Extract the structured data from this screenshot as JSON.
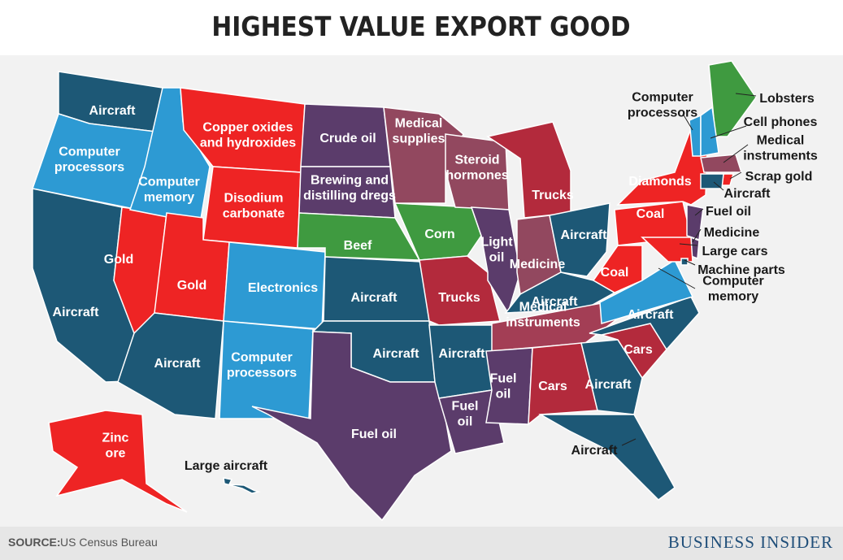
{
  "title": "HIGHEST VALUE EXPORT GOOD",
  "source": {
    "label": "SOURCE:",
    "text": "US Census Bureau"
  },
  "brand": "BUSINESS INSIDER",
  "regions": [
    {
      "label": [
        "Aircraft"
      ],
      "color": "#1d5876"
    },
    {
      "label": [
        "Computer",
        "processors"
      ],
      "color": "#2d9ad3"
    },
    {
      "label": [
        "Aircraft"
      ],
      "color": "#1d5876"
    },
    {
      "label": [
        "Gold"
      ],
      "color": "#ee2424"
    },
    {
      "label": [
        "Computer",
        "memory"
      ],
      "color": "#2d9ad3"
    },
    {
      "label": [
        "Copper oxides",
        "and hydroxides"
      ],
      "color": "#ee2424"
    },
    {
      "label": [
        "Disodium",
        "carbonate"
      ],
      "color": "#ee2424"
    },
    {
      "label": [
        "Gold"
      ],
      "color": "#ee2424"
    },
    {
      "label": [
        "Electronics"
      ],
      "color": "#2d9ad3"
    },
    {
      "label": [
        "Aircraft"
      ],
      "color": "#1d5876"
    },
    {
      "label": [
        "Computer",
        "processors"
      ],
      "color": "#2d9ad3"
    },
    {
      "label": [
        "Crude oil"
      ],
      "color": "#5b3c6b"
    },
    {
      "label": [
        "Brewing and",
        "distilling dregs"
      ],
      "color": "#5b3c6b"
    },
    {
      "label": [
        "Beef"
      ],
      "color": "#3f9a40"
    },
    {
      "label": [
        "Aircraft"
      ],
      "color": "#1d5876"
    },
    {
      "label": [
        "Aircraft"
      ],
      "color": "#1d5876"
    },
    {
      "label": [
        "Fuel oil"
      ],
      "color": "#5b3c6b"
    },
    {
      "label": [
        "Medical",
        "supplies"
      ],
      "color": "#92485f"
    },
    {
      "label": [
        "Corn"
      ],
      "color": "#3f9a40"
    },
    {
      "label": [
        "Trucks"
      ],
      "color": "#b32a3c"
    },
    {
      "label": [
        "Aircraft"
      ],
      "color": "#1d5876"
    },
    {
      "label": [
        "Fuel",
        "oil"
      ],
      "color": "#5b3c6b"
    },
    {
      "label": [
        "Steroid",
        "hormones"
      ],
      "color": "#92485f"
    },
    {
      "label": [
        "Light",
        "oil"
      ],
      "color": "#5b3c6b"
    },
    {
      "label": [
        "Trucks"
      ],
      "color": "#b32a3c"
    },
    {
      "label": [
        "Medicine"
      ],
      "color": "#92485f"
    },
    {
      "label": [
        "Aircraft"
      ],
      "color": "#1d5876"
    },
    {
      "label": [
        "Aircraft"
      ],
      "color": "#1d5876"
    },
    {
      "label": [
        "Medical",
        "instruments"
      ],
      "color": "#a33e55"
    },
    {
      "label": [
        "Fuel",
        "oil"
      ],
      "color": "#5b3c6b"
    },
    {
      "label": [
        "Cars"
      ],
      "color": "#b32a3c"
    },
    {
      "label": [
        "Aircraft"
      ],
      "color": "#1d5876"
    },
    {
      "label": [
        "Aircraft"
      ],
      "color": "#1d5876"
    },
    {
      "label": [
        "Cars"
      ],
      "color": "#b32a3c"
    },
    {
      "label": [
        "Aircraft"
      ],
      "color": "#1d5876"
    },
    {
      "label": [
        "Computer",
        "memory"
      ],
      "color": "#2d9ad3"
    },
    {
      "label": [
        "Coal"
      ],
      "color": "#ee2424"
    },
    {
      "label": [
        "Coal"
      ],
      "color": "#ee2424"
    },
    {
      "label": [
        "Diamonds"
      ],
      "color": "#ee2424"
    },
    {
      "label": [
        "Lobsters"
      ],
      "color": "#3f9a40"
    },
    {
      "label": [
        "Computer",
        "processors"
      ],
      "color": "#2d9ad3"
    },
    {
      "label": [
        "Cell phones"
      ],
      "color": "#2d9ad3"
    },
    {
      "label": [
        "Medical",
        "instruments"
      ],
      "color": "#92485f"
    },
    {
      "label": [
        "Scrap gold"
      ],
      "color": "#ee2424"
    },
    {
      "label": [
        "Aircraft"
      ],
      "color": "#1d5876"
    },
    {
      "label": [
        "Fuel oil"
      ],
      "color": "#5b3c6b"
    },
    {
      "label": [
        "Medicine"
      ],
      "color": "#5b3c6b"
    },
    {
      "label": [
        "Large cars"
      ],
      "color": "#ee2424"
    },
    {
      "label": [
        "Machine parts"
      ],
      "color": "#1d5876"
    },
    {
      "label": [
        "Zinc",
        "ore"
      ],
      "color": "#ee2424"
    },
    {
      "label": [
        "Large aircraft"
      ],
      "color": "#1d5876"
    }
  ]
}
